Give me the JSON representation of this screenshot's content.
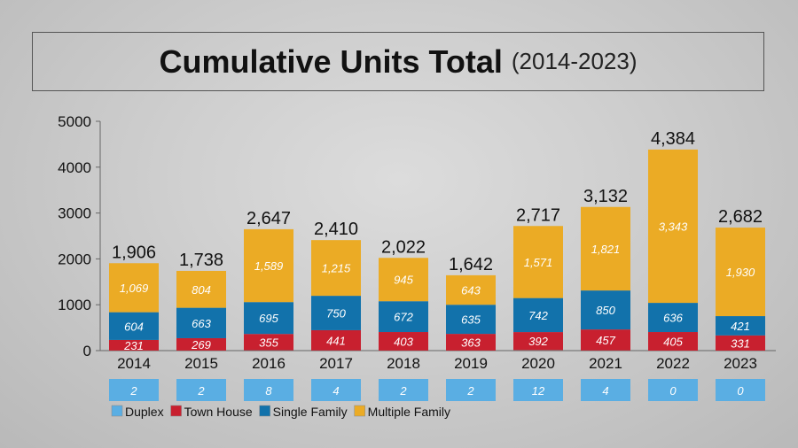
{
  "chart_data": {
    "type": "bar",
    "stacked": true,
    "title": "Cumulative Units Total",
    "subtitle": "(2014-2023)",
    "categories": [
      "2014",
      "2015",
      "2016",
      "2017",
      "2018",
      "2019",
      "2020",
      "2021",
      "2022",
      "2023"
    ],
    "ylim": [
      0,
      5000
    ],
    "yticks": [
      0,
      1000,
      2000,
      3000,
      4000,
      5000
    ],
    "legend": "bottom-left",
    "series": [
      {
        "name": "Duplex",
        "color": "#5aaee3",
        "values": [
          2,
          2,
          8,
          4,
          2,
          2,
          12,
          4,
          0,
          0
        ]
      },
      {
        "name": "Town House",
        "color": "#c8202f",
        "values": [
          231,
          269,
          355,
          441,
          403,
          363,
          392,
          457,
          405,
          331
        ]
      },
      {
        "name": "Single Family",
        "color": "#1272ab",
        "values": [
          604,
          663,
          695,
          750,
          672,
          635,
          742,
          850,
          636,
          421
        ]
      },
      {
        "name": "Multiple Family",
        "color": "#ebab25",
        "values": [
          1069,
          804,
          1589,
          1215,
          945,
          643,
          1571,
          1821,
          3343,
          1930
        ]
      }
    ],
    "totals": [
      "1,906",
      "1,738",
      "2,647",
      "2,410",
      "2,022",
      "1,642",
      "2,717",
      "3,132",
      "4,384",
      "2,682"
    ]
  }
}
